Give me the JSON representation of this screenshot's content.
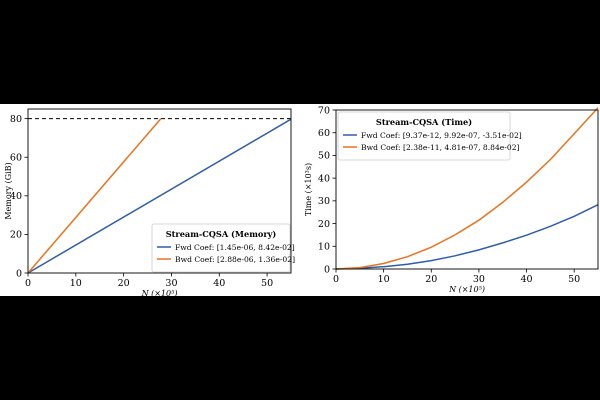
{
  "chart_data": [
    {
      "type": "line",
      "title": "Stream-CQSA (Memory)",
      "xlabel": "N (×10⁵)",
      "ylabel": "Memory (GiB)",
      "xlim": [
        0,
        55
      ],
      "ylim": [
        0,
        85
      ],
      "xticks": [
        0,
        10,
        20,
        30,
        40,
        50
      ],
      "yticks": [
        0,
        20,
        40,
        60,
        80
      ],
      "grid": false,
      "legend_position": "bottom-right",
      "reference_line": {
        "y": 80,
        "style": "dashed",
        "color": "#000000"
      },
      "series": [
        {
          "name": "Fwd",
          "legend_label": "Fwd Coef: [1.45e-06, 8.42e-02]",
          "color": "#2f5ea8",
          "x": [
            0,
            55
          ],
          "y": [
            0,
            79.7
          ]
        },
        {
          "name": "Bwd",
          "legend_label": "Bwd Coef: [2.88e-06, 1.36e-02]",
          "color": "#e8731f",
          "x": [
            0,
            27.8
          ],
          "y": [
            0,
            80
          ]
        }
      ]
    },
    {
      "type": "line",
      "title": "Stream-CQSA (Time)",
      "xlabel": "N (×10⁵)",
      "ylabel": "Time (×10³s)",
      "xlim": [
        0,
        55
      ],
      "ylim": [
        0,
        70
      ],
      "xticks": [
        0,
        10,
        20,
        30,
        40,
        50
      ],
      "yticks": [
        0,
        10,
        20,
        30,
        40,
        50,
        60,
        70
      ],
      "grid": false,
      "legend_position": "top-left",
      "series": [
        {
          "name": "Fwd",
          "legend_label": "Fwd Coef: [9.37e-12, 9.92e-07, -3.51e-02]",
          "color": "#2f5ea8",
          "x": [
            0,
            5,
            10,
            15,
            20,
            25,
            30,
            35,
            40,
            45,
            50,
            55
          ],
          "y": [
            0,
            0.3,
            1.0,
            2.1,
            3.7,
            5.8,
            8.4,
            11.5,
            14.9,
            18.8,
            23.2,
            28.3
          ]
        },
        {
          "name": "Bwd",
          "legend_label": "Bwd Coef: [2.38e-11, 4.81e-07, 8.84e-02]",
          "color": "#e8731f",
          "x": [
            0,
            5,
            10,
            15,
            20,
            25,
            30,
            35,
            40,
            45,
            50,
            55
          ],
          "y": [
            0,
            0.6,
            2.4,
            5.4,
            9.6,
            15.0,
            21.5,
            29.3,
            38.2,
            48.2,
            59.5,
            71.0
          ]
        }
      ]
    }
  ]
}
